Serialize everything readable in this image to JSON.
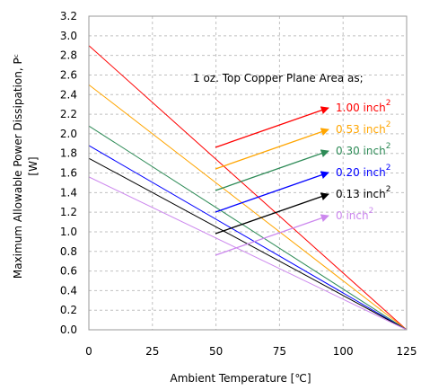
{
  "chart_data": {
    "type": "line",
    "xlabel": "Ambient Temperature [℃]",
    "ylabel_line1": "Maximum Allowable Power Dissipation, Pᶜ",
    "ylabel_line2": "[W]",
    "xlim": [
      0,
      125
    ],
    "ylim": [
      0,
      3.2
    ],
    "xticks": [
      0,
      25,
      50,
      75,
      100,
      125
    ],
    "xtick_labels": [
      "0",
      "25",
      "50",
      "75",
      "100",
      "125"
    ],
    "yticks": [
      0,
      0.2,
      0.4,
      0.6,
      0.8,
      1.0,
      1.2,
      1.4,
      1.6,
      1.8,
      2.0,
      2.2,
      2.4,
      2.6,
      2.8,
      3.0,
      3.2
    ],
    "ytick_labels": [
      "0.0",
      "0.2",
      "0.4",
      "0.6",
      "0.8",
      "1.0",
      "1.2",
      "1.4",
      "1.6",
      "1.8",
      "2.0",
      "2.2",
      "2.4",
      "2.6",
      "2.8",
      "3.0",
      "3.2"
    ],
    "grid": true,
    "legend_title": "1 oz. Top Copper Plane Area as;",
    "legend_unit": "inch",
    "legend_superscript": "2",
    "series": [
      {
        "name": "1.00",
        "color": "#ff0000",
        "x": [
          0,
          125
        ],
        "y": [
          2.9,
          0
        ]
      },
      {
        "name": "0.53",
        "color": "#ffa500",
        "x": [
          0,
          125
        ],
        "y": [
          2.5,
          0
        ]
      },
      {
        "name": "0.30",
        "color": "#2e8b57",
        "x": [
          0,
          125
        ],
        "y": [
          2.08,
          0
        ]
      },
      {
        "name": "0.20",
        "color": "#0000ff",
        "x": [
          0,
          125
        ],
        "y": [
          1.88,
          0
        ]
      },
      {
        "name": "0.13",
        "color": "#000000",
        "x": [
          0,
          125
        ],
        "y": [
          1.75,
          0
        ]
      },
      {
        "name": "0",
        "color": "#cc88ee",
        "x": [
          0,
          125
        ],
        "y": [
          1.56,
          0
        ]
      }
    ]
  }
}
